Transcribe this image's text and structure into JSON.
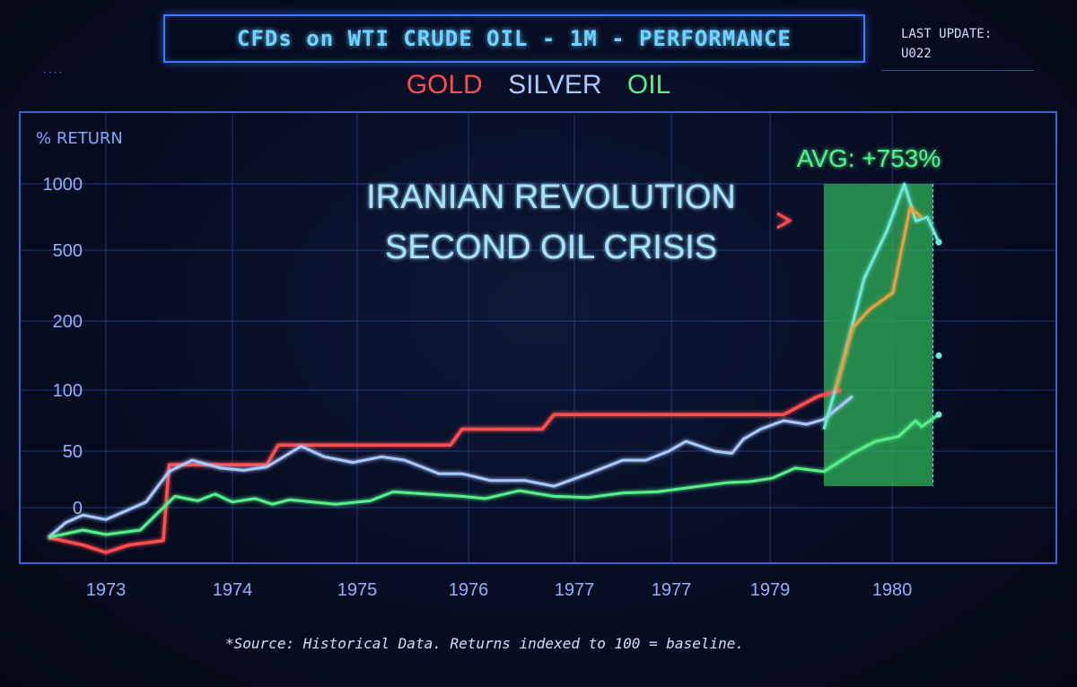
{
  "header": {
    "title": "CFDs on WTI CRUDE OIL - 1M - PERFORMANCE",
    "last_update_label": "LAST UPDATE:",
    "last_update_value": "U022"
  },
  "legend": [
    {
      "label": "GOLD",
      "color": "#ff4d4d"
    },
    {
      "label": "SILVER",
      "color": "#a9c8ff"
    },
    {
      "label": "OIL",
      "color": "#56f08a"
    }
  ],
  "footer": {
    "source": "*Source: Historical Data. Returns indexed to 100 = baseline."
  },
  "chart_data": {
    "type": "line",
    "ylabel": "% RETURN",
    "y_ticks": [
      "1000",
      "500",
      "200",
      "100",
      "50",
      "0"
    ],
    "x_ticks": [
      "1973",
      "1974",
      "1975",
      "1976",
      "1977",
      "1977",
      "1979",
      "1980"
    ],
    "grid": true,
    "annotation": {
      "line1": "IRANIAN REVOLUTION",
      "line2": "SECOND OIL CRISIS"
    },
    "highlight": {
      "label": "AVG: +753%",
      "x_start": 1979.25,
      "x_end": 1980.2,
      "color": "#2fb85a"
    },
    "series": [
      {
        "name": "GOLD",
        "color": "#ff4d4d",
        "x": [
          1972.5,
          1972.8,
          1973.0,
          1973.2,
          1973.5,
          1973.55,
          1974.4,
          1974.5,
          1975.3,
          1976.0,
          1976.1,
          1976.8,
          1976.9,
          1977.0,
          1977.3,
          1977.8,
          1978.3,
          1978.9,
          1979.2,
          1979.4
        ],
        "y": [
          -20,
          -25,
          -30,
          -25,
          -22,
          38,
          38,
          55,
          55,
          55,
          68,
          68,
          80,
          80,
          80,
          80,
          80,
          80,
          95,
          100
        ]
      },
      {
        "name": "SILVER",
        "color": "#a9c8ff",
        "x": [
          1972.5,
          1972.65,
          1972.8,
          1973.0,
          1973.15,
          1973.35,
          1973.55,
          1973.75,
          1974.0,
          1974.2,
          1974.4,
          1974.7,
          1974.9,
          1975.15,
          1975.4,
          1975.6,
          1975.9,
          1976.1,
          1976.35,
          1976.65,
          1976.9,
          1977.2,
          1977.5,
          1977.7,
          1977.9,
          1978.05,
          1978.3,
          1978.45,
          1978.55,
          1978.7,
          1978.9,
          1979.1,
          1979.25,
          1979.5
        ],
        "y": [
          -20,
          -10,
          -5,
          -8,
          -3,
          5,
          32,
          42,
          35,
          33,
          36,
          54,
          45,
          40,
          45,
          42,
          30,
          30,
          24,
          24,
          19,
          30,
          42,
          42,
          50,
          58,
          50,
          48,
          60,
          68,
          75,
          72,
          76,
          95
        ]
      },
      {
        "name": "OIL",
        "color": "#56f08a",
        "x": [
          1972.5,
          1972.8,
          1973.0,
          1973.3,
          1973.6,
          1973.8,
          1973.95,
          1974.1,
          1974.3,
          1974.45,
          1974.6,
          1974.8,
          1975.0,
          1975.3,
          1975.5,
          1975.8,
          1976.1,
          1976.3,
          1976.6,
          1976.9,
          1977.2,
          1977.5,
          1977.8,
          1978.1,
          1978.4,
          1978.6,
          1978.8,
          1979.0,
          1979.25,
          1979.5,
          1979.7,
          1979.9,
          1980.05,
          1980.1,
          1980.25
        ],
        "y": [
          -20,
          -15,
          -18,
          -15,
          10,
          6,
          12,
          5,
          8,
          3,
          7,
          5,
          3,
          6,
          14,
          12,
          10,
          8,
          15,
          10,
          9,
          13,
          14,
          18,
          22,
          23,
          26,
          35,
          32,
          48,
          58,
          62,
          75,
          70,
          80
        ]
      },
      {
        "name": "",
        "color": "#6fe8d8",
        "x": [
          1979.25,
          1979.4,
          1979.6,
          1979.8,
          1979.95,
          1980.05,
          1980.15,
          1980.25
        ],
        "y": [
          68,
          130,
          380,
          650,
          1000,
          720,
          750,
          560
        ]
      },
      {
        "name": "",
        "color": "#e8a040",
        "x": [
          1979.35,
          1979.5,
          1979.65,
          1979.85,
          1980.0,
          1980.1
        ],
        "y": [
          100,
          190,
          250,
          320,
          820,
          750
        ]
      }
    ]
  }
}
